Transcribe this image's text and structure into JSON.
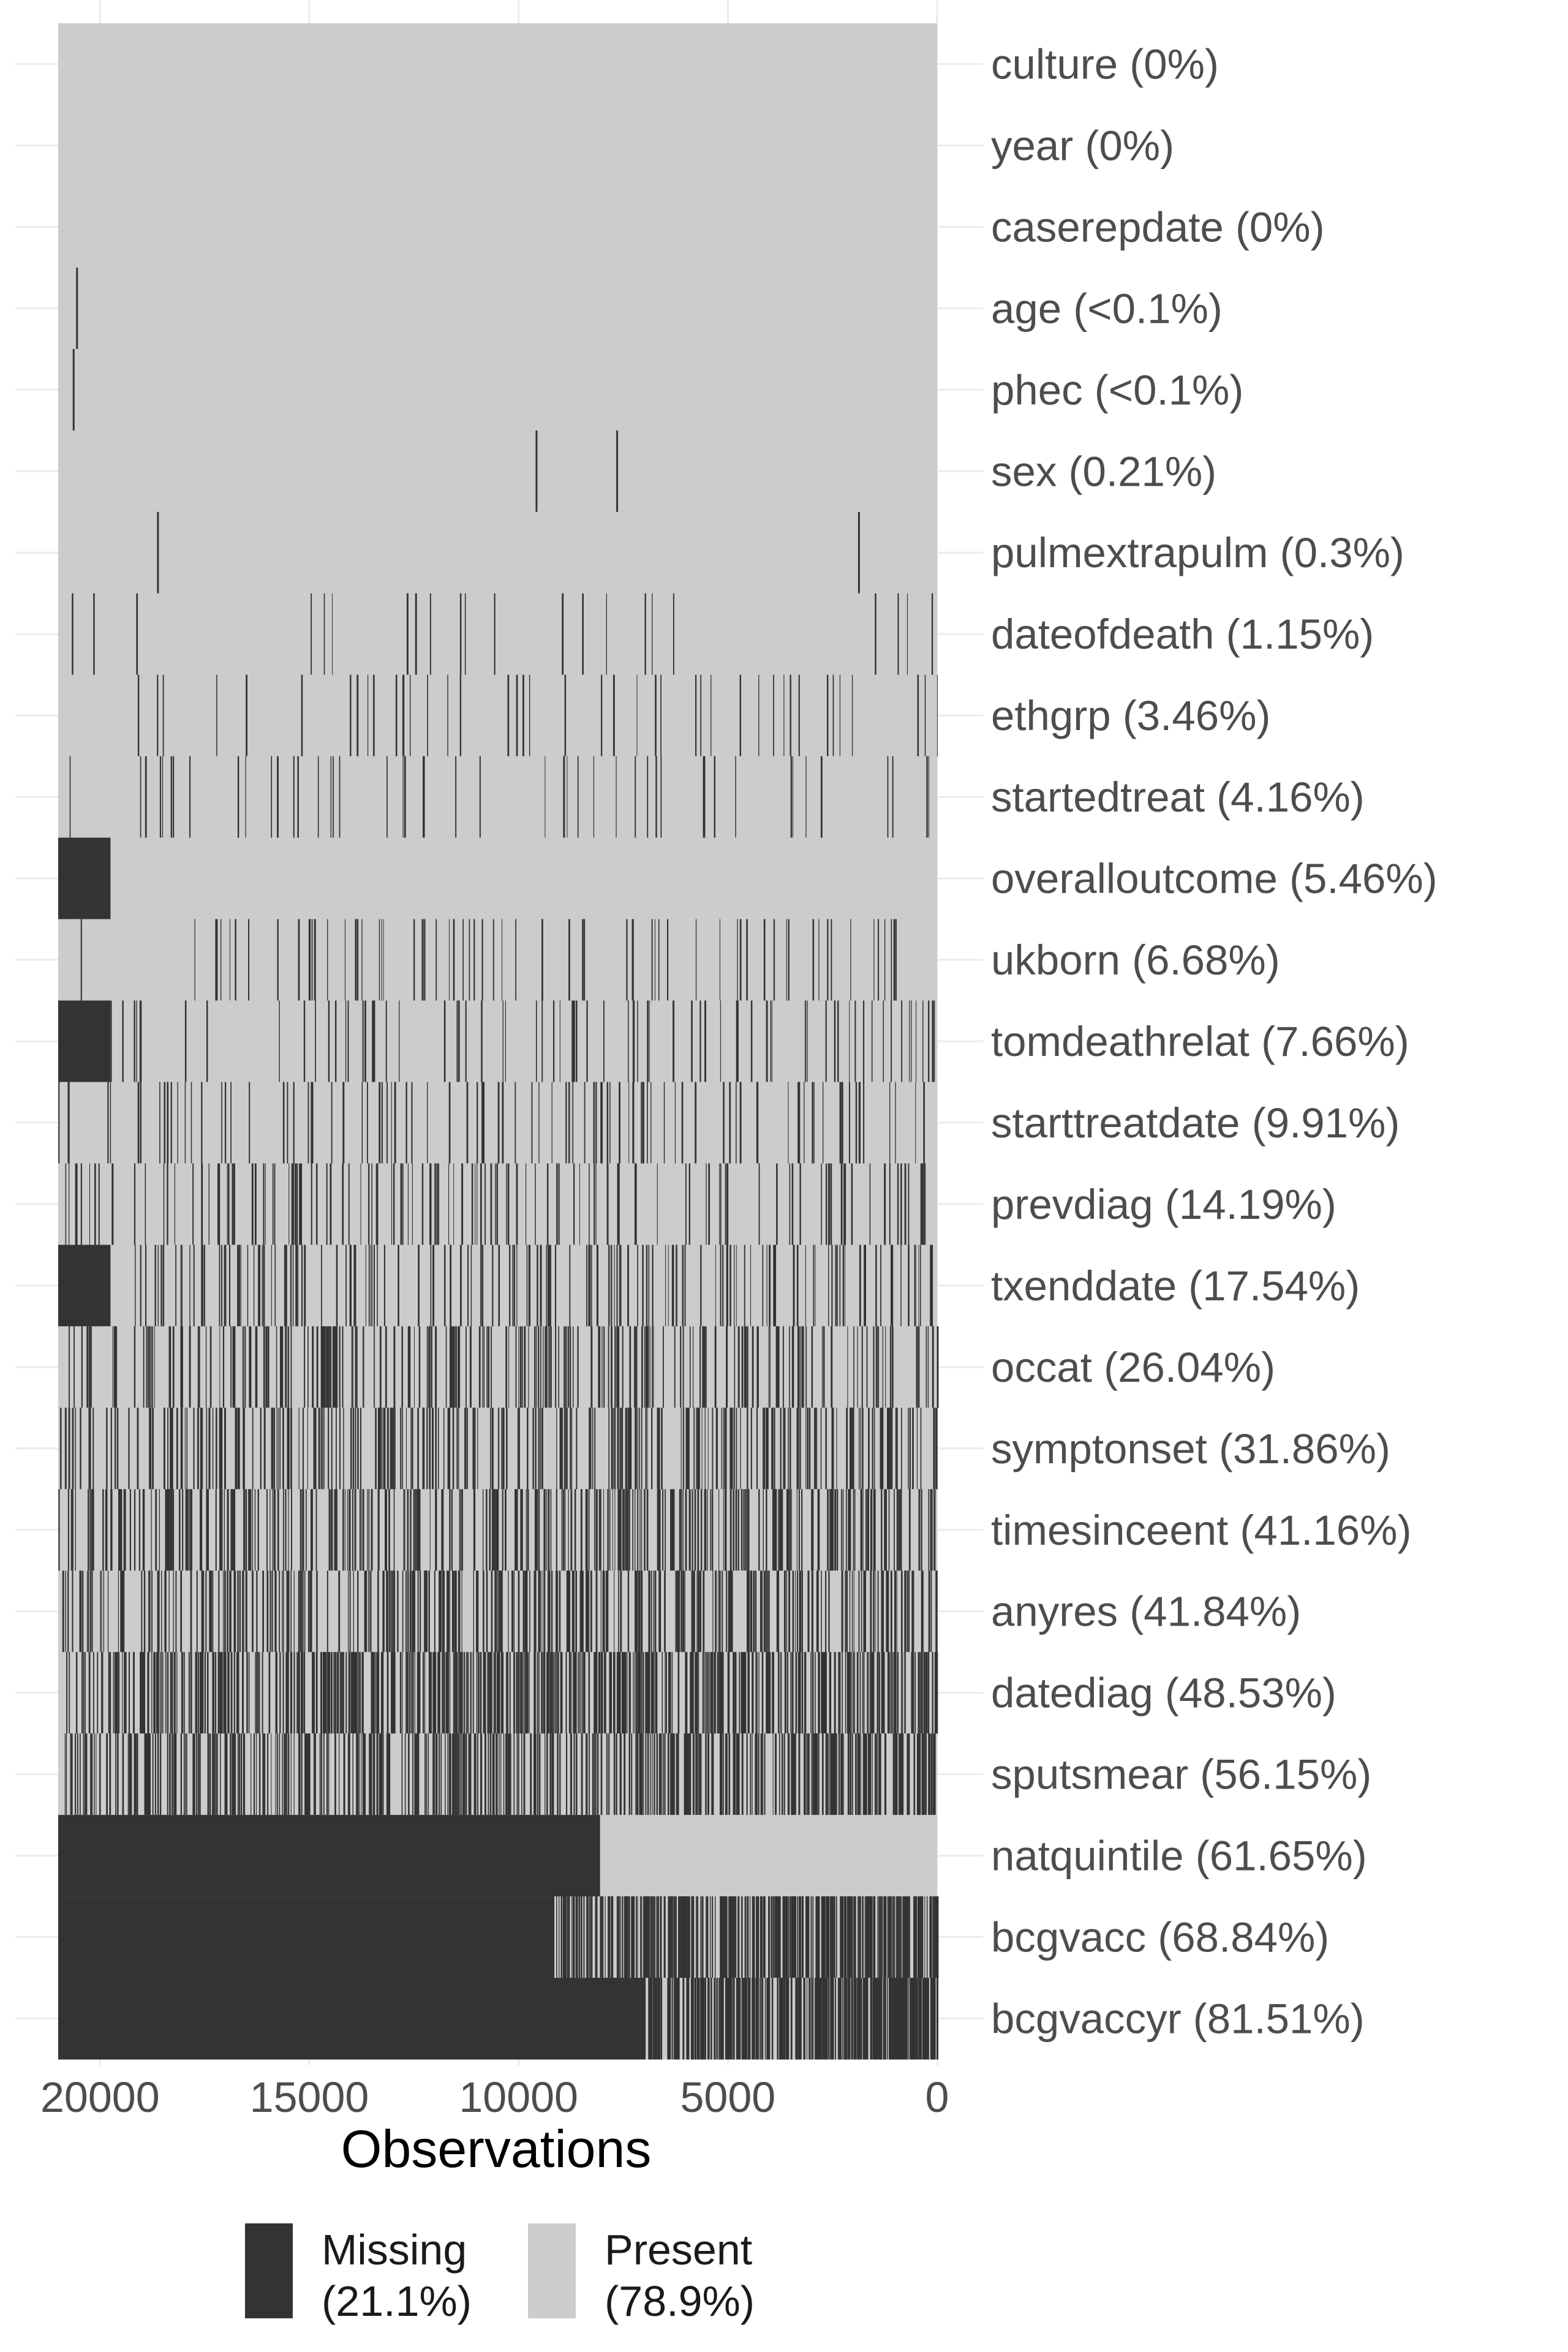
{
  "chart_data": {
    "type": "heatmap",
    "xlabel": "Observations",
    "x_ticks": [
      "20000",
      "15000",
      "10000",
      "5000",
      "0"
    ],
    "x_tick_values": [
      20000,
      15000,
      10000,
      5000,
      0
    ],
    "xlim": [
      21000,
      0
    ],
    "x_reversed": true,
    "rows": [
      {
        "variable": "culture",
        "pct": 0,
        "label": "culture (0%)"
      },
      {
        "variable": "year",
        "pct": 0,
        "label": "year (0%)"
      },
      {
        "variable": "caserepdate",
        "pct": 0,
        "label": "caserepdate (0%)"
      },
      {
        "variable": "age",
        "pct": 0.05,
        "label": "age (<0.1%)"
      },
      {
        "variable": "phec",
        "pct": 0.05,
        "label": "phec (<0.1%)"
      },
      {
        "variable": "sex",
        "pct": 0.21,
        "label": "sex (0.21%)"
      },
      {
        "variable": "pulmextrapulm",
        "pct": 0.3,
        "label": "pulmextrapulm (0.3%)"
      },
      {
        "variable": "dateofdeath",
        "pct": 1.15,
        "label": "dateofdeath (1.15%)"
      },
      {
        "variable": "ethgrp",
        "pct": 3.46,
        "label": "ethgrp (3.46%)"
      },
      {
        "variable": "startedtreat",
        "pct": 4.16,
        "label": "startedtreat (4.16%)"
      },
      {
        "variable": "overalloutcome",
        "pct": 5.46,
        "label": "overalloutcome (5.46%)"
      },
      {
        "variable": "ukborn",
        "pct": 6.68,
        "label": "ukborn (6.68%)"
      },
      {
        "variable": "tomdeathrelat",
        "pct": 7.66,
        "label": "tomdeathrelat (7.66%)"
      },
      {
        "variable": "starttreatdate",
        "pct": 9.91,
        "label": "starttreatdate (9.91%)"
      },
      {
        "variable": "prevdiag",
        "pct": 14.19,
        "label": "prevdiag (14.19%)"
      },
      {
        "variable": "txenddate",
        "pct": 17.54,
        "label": "txenddate (17.54%)"
      },
      {
        "variable": "occat",
        "pct": 26.04,
        "label": "occat (26.04%)"
      },
      {
        "variable": "symptonset",
        "pct": 31.86,
        "label": "symptonset (31.86%)"
      },
      {
        "variable": "timesinceent",
        "pct": 41.16,
        "label": "timesinceent (41.16%)"
      },
      {
        "variable": "anyres",
        "pct": 41.84,
        "label": "anyres (41.84%)"
      },
      {
        "variable": "datediag",
        "pct": 48.53,
        "label": "datediag (48.53%)"
      },
      {
        "variable": "sputsmear",
        "pct": 56.15,
        "label": "sputsmear (56.15%)"
      },
      {
        "variable": "natquintile",
        "pct": 61.65,
        "label": "natquintile (61.65%)"
      },
      {
        "variable": "bcgvacc",
        "pct": 68.84,
        "label": "bcgvacc (68.84%)"
      },
      {
        "variable": "bcgvaccyr",
        "pct": 81.51,
        "label": "bcgvaccyr (81.51%)"
      }
    ],
    "legend": {
      "position": "bottom",
      "items": [
        {
          "label": "Missing",
          "pct_label": "(21.1%)",
          "color": "#333333"
        },
        {
          "label": "Present",
          "pct_label": "(78.9%)",
          "color": "#cccccc"
        }
      ]
    },
    "colors": {
      "missing": "#333333",
      "present": "#cccccc",
      "grid": "#ebebeb",
      "text": "#4d4d4d"
    },
    "grid": true
  }
}
